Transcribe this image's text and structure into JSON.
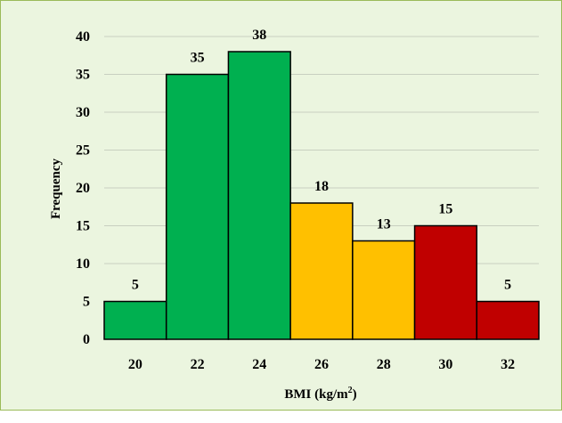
{
  "chart_data": {
    "type": "bar",
    "categories": [
      "20",
      "22",
      "24",
      "26",
      "28",
      "30",
      "32"
    ],
    "values": [
      5,
      35,
      38,
      18,
      13,
      15,
      5
    ],
    "bar_colors": [
      "#00b050",
      "#00b050",
      "#00b050",
      "#ffc000",
      "#ffc000",
      "#c00000",
      "#c00000"
    ],
    "bar_edge_color": "#000000",
    "title": "",
    "xlabel": "BMI (kg/m",
    "xlabel_sup": "2",
    "xlabel_suffix": ")",
    "ylabel": "Frequency",
    "ylim": [
      0,
      40
    ],
    "yticks": [
      0,
      5,
      10,
      15,
      20,
      25,
      30,
      35,
      40
    ],
    "grid": true,
    "legend": "none",
    "background": "#ebf5df",
    "frame_border": "#9bbb59"
  }
}
